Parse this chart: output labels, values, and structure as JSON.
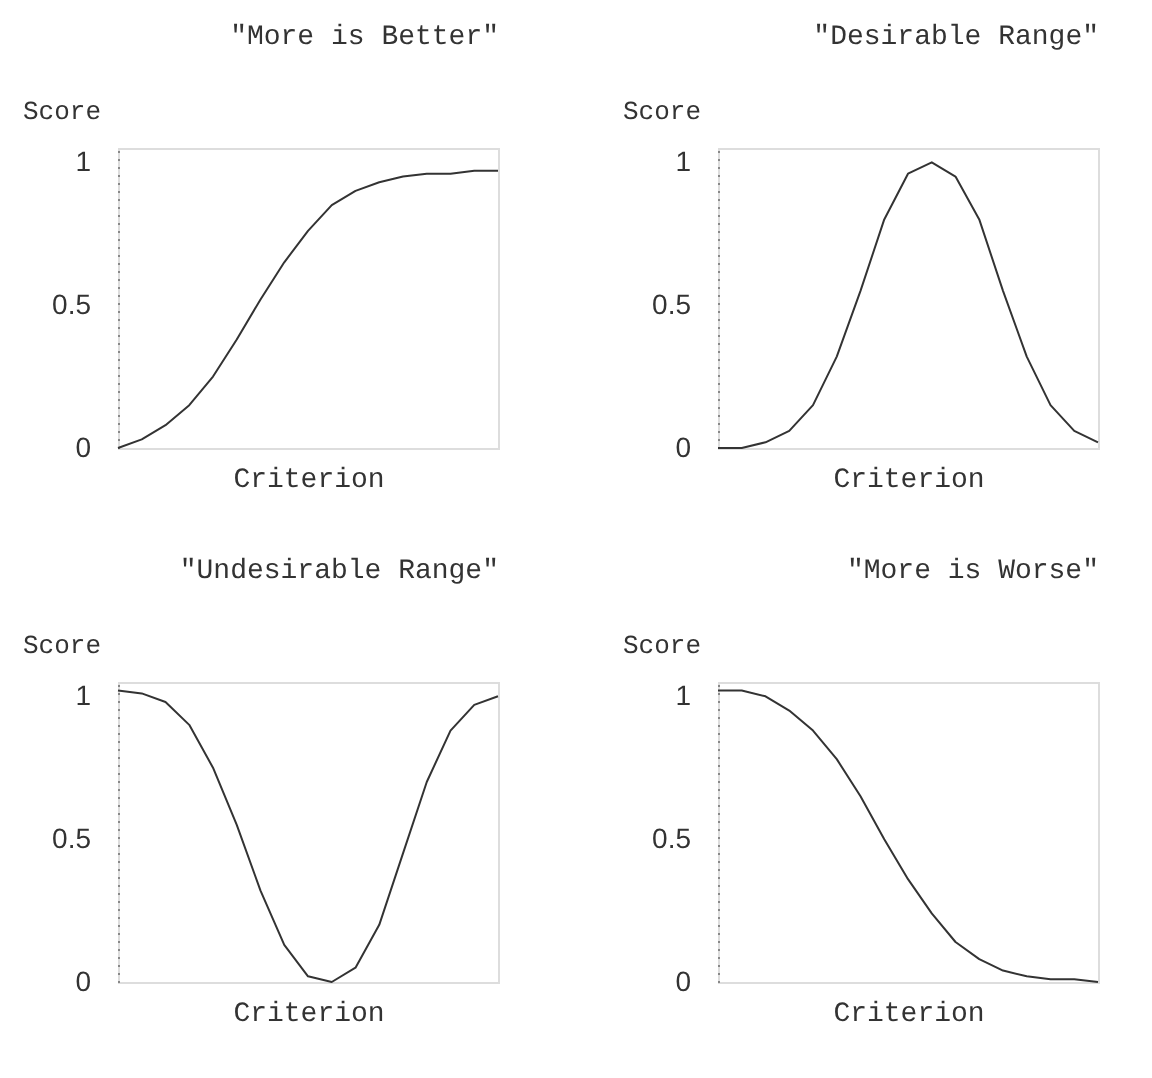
{
  "chart_data": [
    {
      "type": "line",
      "title": "\"More is Better\"",
      "xlabel": "Criterion",
      "ylabel": "Score",
      "categories": [
        null,
        null,
        null,
        null,
        null,
        null,
        null,
        null,
        null,
        null,
        null,
        null,
        null,
        null,
        null,
        null,
        null
      ],
      "series": [
        {
          "color": "#333333",
          "values": [
            0,
            0.03,
            0.08,
            0.15,
            0.25,
            0.38,
            0.52,
            0.65,
            0.76,
            0.85,
            0.9,
            0.93,
            0.95,
            0.96,
            0.96,
            0.97,
            0.97
          ]
        }
      ],
      "ylim": [
        0,
        1.05
      ],
      "yticks": [
        0,
        0.5,
        1
      ],
      "grid": false,
      "tick_labels": "y"
    },
    {
      "type": "line",
      "title": "\"Desirable Range\"",
      "xlabel": "Criterion",
      "ylabel": "Score",
      "categories": [
        null,
        null,
        null,
        null,
        null,
        null,
        null,
        null,
        null,
        null,
        null,
        null,
        null,
        null,
        null,
        null,
        null
      ],
      "series": [
        {
          "color": "#333333",
          "values": [
            0,
            0,
            0.02,
            0.06,
            0.15,
            0.32,
            0.55,
            0.8,
            0.96,
            1,
            0.95,
            0.8,
            0.55,
            0.32,
            0.15,
            0.06,
            0.02
          ]
        }
      ],
      "ylim": [
        0,
        1.05
      ],
      "yticks": [
        0,
        0.5,
        1
      ],
      "grid": false,
      "tick_labels": "y"
    },
    {
      "type": "line",
      "title": "\"Undesirable Range\"",
      "xlabel": "Criterion",
      "ylabel": "Score",
      "categories": [
        null,
        null,
        null,
        null,
        null,
        null,
        null,
        null,
        null,
        null,
        null,
        null,
        null,
        null,
        null,
        null,
        null
      ],
      "series": [
        {
          "color": "#333333",
          "values": [
            1.02,
            1.01,
            0.98,
            0.9,
            0.75,
            0.55,
            0.32,
            0.13,
            0.02,
            0,
            0.05,
            0.2,
            0.45,
            0.7,
            0.88,
            0.97,
            1
          ]
        }
      ],
      "ylim": [
        0,
        1.05
      ],
      "yticks": [
        0,
        0.5,
        1
      ],
      "grid": false,
      "tick_labels": "y"
    },
    {
      "type": "line",
      "title": "\"More is Worse\"",
      "xlabel": "Criterion",
      "ylabel": "Score",
      "categories": [
        null,
        null,
        null,
        null,
        null,
        null,
        null,
        null,
        null,
        null,
        null,
        null,
        null,
        null,
        null,
        null,
        null
      ],
      "series": [
        {
          "color": "#333333",
          "values": [
            1.02,
            1.02,
            1,
            0.95,
            0.88,
            0.78,
            0.65,
            0.5,
            0.36,
            0.24,
            0.14,
            0.08,
            0.04,
            0.02,
            0.01,
            0.01,
            0
          ]
        }
      ],
      "ylim": [
        0,
        1.05
      ],
      "yticks": [
        0,
        0.5,
        1
      ],
      "grid": false,
      "tick_labels": "y"
    }
  ]
}
